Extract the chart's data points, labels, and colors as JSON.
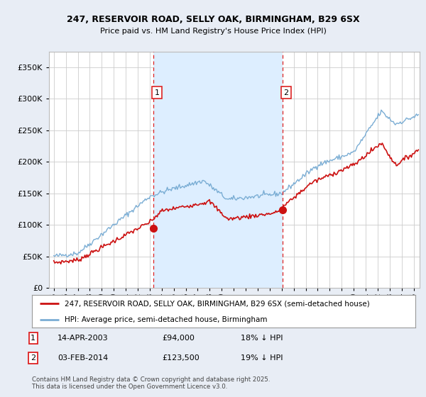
{
  "title1": "247, RESERVOIR ROAD, SELLY OAK, BIRMINGHAM, B29 6SX",
  "title2": "Price paid vs. HM Land Registry's House Price Index (HPI)",
  "legend1": "247, RESERVOIR ROAD, SELLY OAK, BIRMINGHAM, B29 6SX (semi-detached house)",
  "legend2": "HPI: Average price, semi-detached house, Birmingham",
  "sale1_date": "14-APR-2003",
  "sale1_price": 94000,
  "sale1_label": "18% ↓ HPI",
  "sale2_date": "03-FEB-2014",
  "sale2_price": 123500,
  "sale2_label": "19% ↓ HPI",
  "footer": "Contains HM Land Registry data © Crown copyright and database right 2025.\nThis data is licensed under the Open Government Licence v3.0.",
  "hpi_color": "#7aadd4",
  "price_color": "#cc1111",
  "vline_color": "#dd2222",
  "shade_color": "#ddeeff",
  "bg_color": "#e8edf5",
  "plot_bg": "#ffffff",
  "grid_color": "#cccccc",
  "ylim": [
    0,
    375000
  ],
  "yticks": [
    0,
    50000,
    100000,
    150000,
    200000,
    250000,
    300000,
    350000
  ],
  "sale1_x": 2003.29,
  "sale2_x": 2014.08,
  "xmin": 1994.6,
  "xmax": 2025.5
}
